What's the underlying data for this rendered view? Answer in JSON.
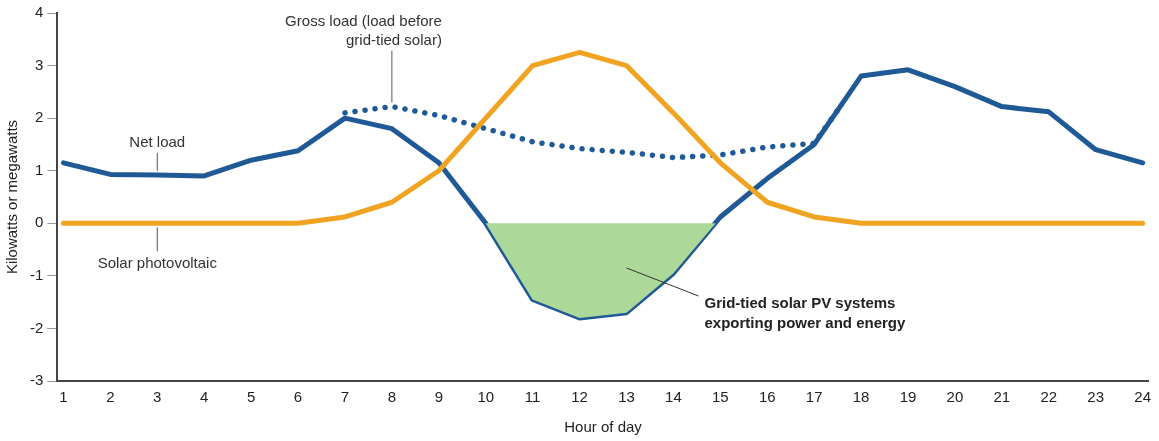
{
  "chart_data": {
    "type": "line",
    "xlabel": "Hour of day",
    "ylabel": "Kilowatts or megawatts",
    "x": [
      1,
      2,
      3,
      4,
      5,
      6,
      7,
      8,
      9,
      10,
      11,
      12,
      13,
      14,
      15,
      16,
      17,
      18,
      19,
      20,
      21,
      22,
      23,
      24
    ],
    "xlim": [
      0.87,
      24.13
    ],
    "xticks": [
      1,
      2,
      3,
      4,
      5,
      6,
      7,
      8,
      9,
      10,
      11,
      12,
      13,
      14,
      15,
      16,
      17,
      18,
      19,
      20,
      21,
      22,
      23,
      24
    ],
    "ylim": [
      -3,
      4
    ],
    "yticks": [
      -3,
      -2,
      -1,
      0,
      1,
      2,
      3,
      4
    ],
    "grid": false,
    "legend": false,
    "marker": "none",
    "series": [
      {
        "type": "area",
        "color": "#acd89a",
        "x": [
          10,
          11,
          12,
          13,
          14,
          14.9
        ],
        "values": [
          0,
          -1.45,
          -1.8,
          -1.7,
          -0.95,
          0
        ]
      },
      {
        "name": "Solar photovoltaic",
        "color": "#f0a422",
        "values": [
          0,
          0,
          0,
          0,
          0,
          0,
          0.12,
          0.4,
          1.0,
          2.0,
          3.0,
          3.25,
          3.0,
          2.1,
          1.15,
          0.4,
          0.12,
          0,
          0,
          0,
          0,
          0,
          0,
          0
        ]
      },
      {
        "name": "Gross load (load before grid-tied solar)",
        "color": "#1f5a96",
        "line_style": "dotted",
        "x": [
          7,
          8,
          9,
          10,
          11,
          12,
          13,
          14,
          15,
          16,
          17,
          17.5
        ],
        "values": [
          2.1,
          2.22,
          2.05,
          1.8,
          1.55,
          1.42,
          1.35,
          1.25,
          1.3,
          1.45,
          1.52,
          2.15
        ]
      },
      {
        "name": "Net load",
        "color": "#1f5a96",
        "values": [
          1.15,
          0.93,
          0.92,
          0.9,
          1.2,
          1.38,
          2.0,
          1.8,
          1.15,
          0.0,
          -1.45,
          -1.8,
          -1.7,
          -0.95,
          0.12,
          0.85,
          1.5,
          2.8,
          2.92,
          2.6,
          2.22,
          2.12,
          1.4,
          1.15
        ]
      }
    ],
    "annotations": [
      "Grid-tied solar PV systems exporting power and energy"
    ]
  }
}
